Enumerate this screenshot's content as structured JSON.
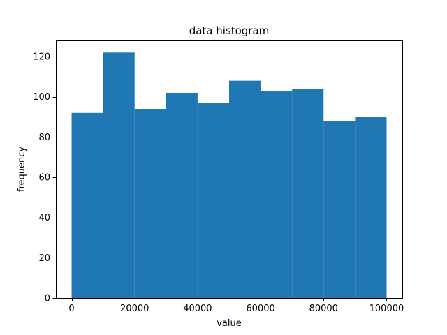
{
  "chart_data": {
    "type": "bar",
    "title": "data histogram",
    "xlabel": "value",
    "ylabel": "frequency",
    "bins": [
      {
        "x0": 0,
        "x1": 10000,
        "count": 92
      },
      {
        "x0": 10000,
        "x1": 20000,
        "count": 122
      },
      {
        "x0": 20000,
        "x1": 30000,
        "count": 94
      },
      {
        "x0": 30000,
        "x1": 40000,
        "count": 102
      },
      {
        "x0": 40000,
        "x1": 50000,
        "count": 97
      },
      {
        "x0": 50000,
        "x1": 60000,
        "count": 108
      },
      {
        "x0": 60000,
        "x1": 70000,
        "count": 103
      },
      {
        "x0": 70000,
        "x1": 80000,
        "count": 104
      },
      {
        "x0": 80000,
        "x1": 90000,
        "count": 88
      },
      {
        "x0": 90000,
        "x1": 100000,
        "count": 90
      }
    ],
    "xlim": [
      -5000,
      105000
    ],
    "ylim": [
      0,
      128
    ],
    "xticks": [
      0,
      20000,
      40000,
      60000,
      80000,
      100000
    ],
    "xtick_labels": [
      "0",
      "20000",
      "40000",
      "60000",
      "80000",
      "100000"
    ],
    "yticks": [
      0,
      20,
      40,
      60,
      80,
      100,
      120
    ],
    "ytick_labels": [
      "0",
      "20",
      "40",
      "60",
      "80",
      "100",
      "120"
    ],
    "grid": false,
    "bar_color": "#1f77b4"
  }
}
